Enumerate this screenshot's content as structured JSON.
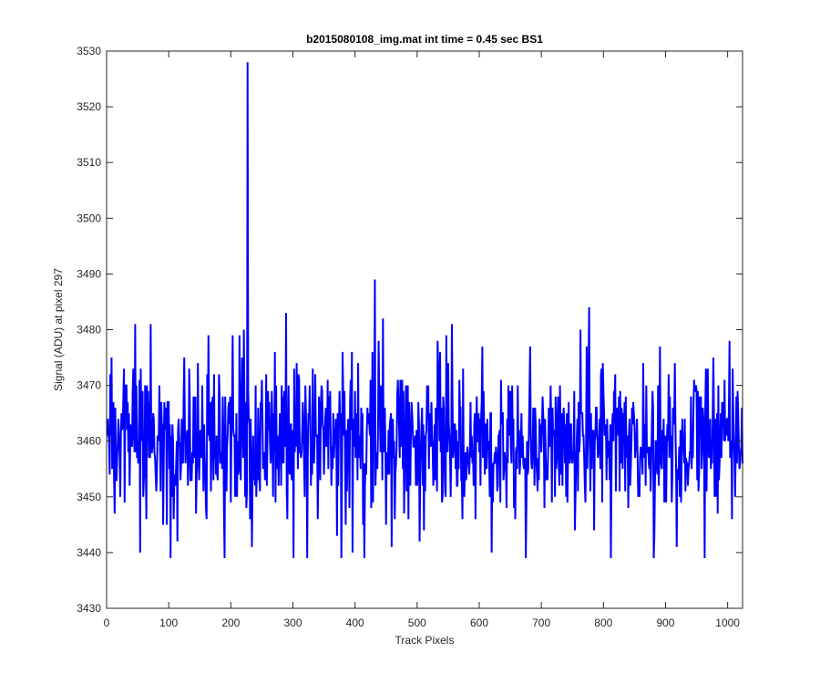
{
  "figure": {
    "background": "#ffffff",
    "axes_color": "#262626",
    "line_color": "#0000ff"
  },
  "chart_data": {
    "type": "line",
    "title": "b2015080108_img.mat int time = 0.45 sec   BS1",
    "xlabel": "Track Pixels",
    "ylabel": "Signal (ADU) at pixel 297",
    "xlim": [
      0,
      1024
    ],
    "ylim": [
      3430,
      3530
    ],
    "xticks": [
      0,
      100,
      200,
      300,
      400,
      500,
      600,
      700,
      800,
      900,
      1000
    ],
    "yticks": [
      3430,
      3440,
      3450,
      3460,
      3470,
      3480,
      3490,
      3500,
      3510,
      3520,
      3530
    ],
    "grid": false,
    "series": [
      {
        "color": "#0000ff",
        "noise": {
          "points": 1024,
          "x_start": 1,
          "mean": 3460,
          "std": 7,
          "min": 3439,
          "max": 3484
        },
        "features": [
          {
            "x": 8,
            "y": 3475
          },
          {
            "x": 46,
            "y": 3481
          },
          {
            "x": 54,
            "y": 3440
          },
          {
            "x": 71,
            "y": 3481
          },
          {
            "x": 103,
            "y": 3439
          },
          {
            "x": 114,
            "y": 3442
          },
          {
            "x": 221,
            "y": 3480
          },
          {
            "x": 225,
            "y": 3448
          },
          {
            "x": 227,
            "y": 3528
          },
          {
            "x": 231,
            "y": 3446
          },
          {
            "x": 289,
            "y": 3483
          },
          {
            "x": 396,
            "y": 3440
          },
          {
            "x": 415,
            "y": 3439
          },
          {
            "x": 432,
            "y": 3489
          },
          {
            "x": 445,
            "y": 3482
          },
          {
            "x": 556,
            "y": 3481
          },
          {
            "x": 675,
            "y": 3439
          },
          {
            "x": 777,
            "y": 3484
          },
          {
            "x": 812,
            "y": 3439
          },
          {
            "x": 881,
            "y": 3439
          },
          {
            "x": 918,
            "y": 3441
          },
          {
            "x": 963,
            "y": 3439
          },
          {
            "x": 1003,
            "y": 3478
          },
          {
            "x": 1012,
            "y": 3450
          }
        ]
      }
    ]
  }
}
